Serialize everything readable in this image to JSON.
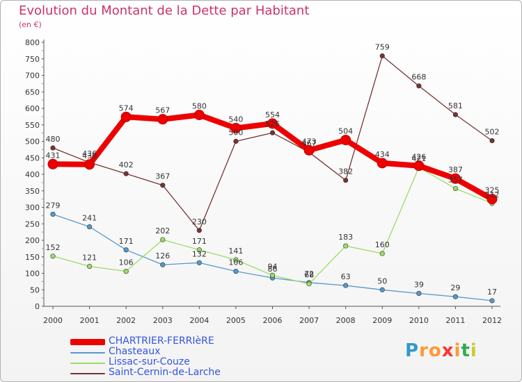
{
  "title": "Evolution du Montant de la Dette par Habitant",
  "subtitle": "(en €)",
  "logo": {
    "text": "Proxiti",
    "colors": [
      "#3399cc",
      "#ff9933",
      "#ff9933",
      "#ff3333",
      "#ff9933",
      "#33aa55",
      "#cccc33"
    ]
  },
  "chart_data": {
    "type": "line",
    "title": "Evolution du Montant de la Dette par Habitant",
    "subtitle": "(en €)",
    "x": [
      "2000",
      "2001",
      "2002",
      "2003",
      "2004",
      "2005",
      "2006",
      "2007",
      "2008",
      "2009",
      "2010",
      "2011",
      "2012"
    ],
    "ylim": [
      0,
      800
    ],
    "yticks": [
      0,
      50,
      100,
      150,
      200,
      250,
      300,
      350,
      400,
      450,
      500,
      550,
      600,
      650,
      700,
      750,
      800
    ],
    "grid": false,
    "legend_position": "bottom-left",
    "series": [
      {
        "name": "CHARTRIER-FERRIèRE",
        "color": "#ee0000",
        "values": [
          431,
          430,
          574,
          567,
          580,
          540,
          554,
          473,
          504,
          434,
          426,
          387,
          325
        ]
      },
      {
        "name": "Chasteaux",
        "color": "#5599cc",
        "values": [
          279,
          241,
          171,
          126,
          132,
          106,
          86,
          72,
          63,
          50,
          39,
          29,
          17
        ]
      },
      {
        "name": "Lissac-sur-Couze",
        "color": "#99dd66",
        "values": [
          152,
          121,
          106,
          202,
          171,
          141,
          94,
          68,
          183,
          160,
          421,
          357,
          312
        ]
      },
      {
        "name": "Saint-Cernin-de-Larche",
        "color": "#773333",
        "values": [
          480,
          436,
          402,
          367,
          230,
          500,
          526,
          467,
          382,
          759,
          668,
          581,
          502
        ]
      }
    ]
  }
}
